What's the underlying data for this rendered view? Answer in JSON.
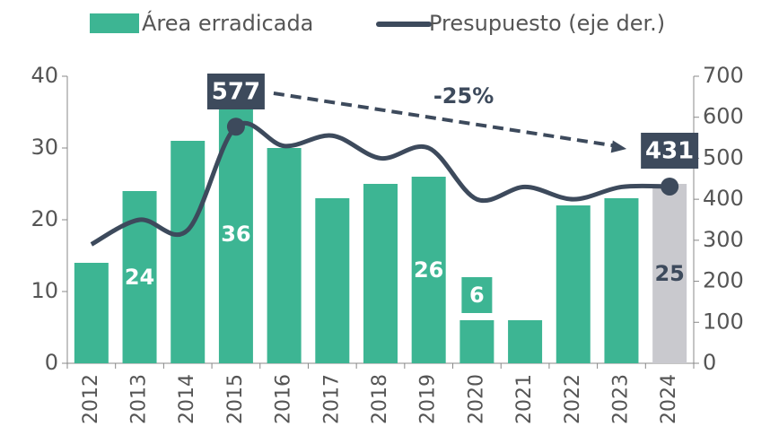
{
  "chart_data": {
    "type": "bar_line",
    "categories": [
      "2012",
      "2013",
      "2014",
      "2015",
      "2016",
      "2017",
      "2018",
      "2019",
      "2020",
      "2021",
      "2022",
      "2023",
      "2024"
    ],
    "series": [
      {
        "name": "Área erradicada",
        "type": "bar",
        "color": "#3db593",
        "colors": [
          "#3db593",
          "#3db593",
          "#3db593",
          "#3db593",
          "#3db593",
          "#3db593",
          "#3db593",
          "#3db593",
          "#3db593",
          "#3db593",
          "#3db593",
          "#3db593",
          "#c9c9ce"
        ],
        "values": [
          14,
          24,
          31,
          36,
          30,
          23,
          25,
          26,
          6,
          6,
          22,
          23,
          25
        ],
        "value_labels": [
          null,
          "24",
          null,
          "36",
          null,
          null,
          null,
          "26",
          "6",
          null,
          null,
          null,
          "25"
        ]
      },
      {
        "name": "Presupuesto (eje der.)",
        "type": "line",
        "axis": "y2",
        "color": "#3d4a5c",
        "values": [
          290,
          350,
          325,
          577,
          530,
          555,
          500,
          525,
          400,
          430,
          400,
          430,
          431
        ],
        "value_labels": [
          null,
          null,
          null,
          "577",
          null,
          null,
          null,
          null,
          null,
          null,
          null,
          null,
          "431"
        ]
      }
    ],
    "annotations": [
      {
        "text": "-25%"
      }
    ],
    "ylim": [
      0,
      40
    ],
    "yticks": [
      0,
      10,
      20,
      30,
      40
    ],
    "y2lim": [
      0,
      700
    ],
    "y2ticks": [
      0,
      100,
      200,
      300,
      400,
      500,
      600,
      700
    ]
  }
}
